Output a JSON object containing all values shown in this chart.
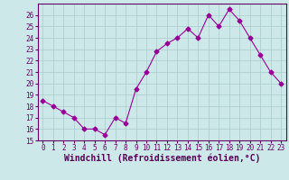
{
  "x": [
    0,
    1,
    2,
    3,
    4,
    5,
    6,
    7,
    8,
    9,
    10,
    11,
    12,
    13,
    14,
    15,
    16,
    17,
    18,
    19,
    20,
    21,
    22,
    23
  ],
  "y": [
    18.5,
    18.0,
    17.5,
    17.0,
    16.0,
    16.0,
    15.5,
    17.0,
    16.5,
    19.5,
    21.0,
    22.8,
    23.5,
    24.0,
    24.8,
    24.0,
    26.0,
    25.0,
    26.5,
    25.5,
    24.0,
    22.5,
    21.0,
    20.0
  ],
  "line_color": "#990099",
  "marker": "D",
  "markersize": 2.5,
  "linewidth": 0.8,
  "xlabel": "Windchill (Refroidissement éolien,°C)",
  "xlabel_fontsize": 7,
  "ylim": [
    15,
    27
  ],
  "xlim": [
    -0.5,
    23.5
  ],
  "yticks": [
    15,
    16,
    17,
    18,
    19,
    20,
    21,
    22,
    23,
    24,
    25,
    26
  ],
  "xticks": [
    0,
    1,
    2,
    3,
    4,
    5,
    6,
    7,
    8,
    9,
    10,
    11,
    12,
    13,
    14,
    15,
    16,
    17,
    18,
    19,
    20,
    21,
    22,
    23
  ],
  "xtick_labels": [
    "0",
    "1",
    "2",
    "3",
    "4",
    "5",
    "6",
    "7",
    "8",
    "9",
    "10",
    "11",
    "12",
    "13",
    "14",
    "15",
    "16",
    "17",
    "18",
    "19",
    "20",
    "21",
    "22",
    "23"
  ],
  "background_color": "#cce8e8",
  "grid_color": "#aacccc",
  "tick_fontsize": 5.5,
  "border_color": "#660066",
  "title": ""
}
